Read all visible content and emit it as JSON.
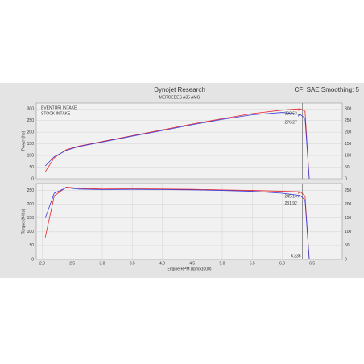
{
  "header": {
    "title": "Dynojet Research",
    "subtitle": "MERCEDES A35 AMG",
    "settings": "CF: SAE Smoothing: 5"
  },
  "chart_data": [
    {
      "type": "line",
      "y_label": "Power (hp)",
      "x": [
        2.05,
        2.2,
        2.4,
        2.6,
        3.0,
        3.5,
        4.0,
        4.5,
        5.0,
        5.5,
        6.0,
        6.3,
        6.38,
        6.45
      ],
      "series": [
        {
          "name": "EVENTURI INTAKE",
          "color": "#e8262b",
          "values": [
            30,
            90,
            125,
            140,
            160,
            185,
            210,
            235,
            258,
            280,
            295,
            300.53,
            290,
            0
          ]
        },
        {
          "name": "STOCK INTAKE",
          "color": "#3b3bdc",
          "values": [
            55,
            95,
            122,
            138,
            158,
            183,
            207,
            232,
            255,
            275,
            285,
            276.27,
            260,
            0
          ]
        }
      ],
      "annotations": [
        {
          "text": "300.53",
          "x": 6.3,
          "y": 300.53,
          "color": "#e8262b"
        },
        {
          "text": "276.27",
          "x": 6.3,
          "y": 276.27,
          "color": "#3b3bdc"
        }
      ],
      "xlim": [
        1.9,
        7.0
      ],
      "ylim": [
        0,
        325
      ],
      "yticks": [
        0,
        50,
        100,
        150,
        200,
        250,
        300
      ],
      "grid": true,
      "legend": "top-left",
      "vline": {
        "value": 6.336
      }
    },
    {
      "type": "line",
      "y_label": "Torque (ft-lbs)",
      "x_label": "Engine RPM (rpmx1000)",
      "x": [
        2.05,
        2.2,
        2.4,
        2.6,
        3.0,
        3.5,
        4.0,
        4.5,
        5.0,
        5.5,
        6.0,
        6.3,
        6.38,
        6.45
      ],
      "series": [
        {
          "name": "EVENTURI INTAKE",
          "color": "#e8262b",
          "values": [
            80,
            230,
            262,
            258,
            255,
            256,
            255,
            254,
            252,
            250,
            247,
            245.14,
            230,
            0
          ]
        },
        {
          "name": "STOCK INTAKE",
          "color": "#3b3bdc",
          "values": [
            150,
            240,
            260,
            255,
            253,
            254,
            253,
            252,
            250,
            247,
            240,
            231.92,
            215,
            0
          ]
        }
      ],
      "annotations": [
        {
          "text": "245.14",
          "x": 6.3,
          "y": 245.14,
          "color": "#e8262b"
        },
        {
          "text": "231.92",
          "x": 6.3,
          "y": 231.92,
          "color": "#3b3bdc"
        }
      ],
      "xlim": [
        1.9,
        7.0
      ],
      "ylim": [
        0,
        275
      ],
      "yticks": [
        0,
        50,
        100,
        150,
        200,
        250
      ],
      "xticks": [
        {
          "value": 2,
          "label": "2.0"
        },
        2.5,
        {
          "value": 3,
          "label": "3.0"
        },
        3.5,
        {
          "value": 4,
          "label": "4.0"
        },
        4.5,
        {
          "value": 5,
          "label": "5.0"
        },
        5.5,
        {
          "value": 6,
          "label": "6.0"
        },
        6.5
      ],
      "grid": true,
      "vline": {
        "value": 6.336,
        "label": "6.336"
      }
    }
  ]
}
